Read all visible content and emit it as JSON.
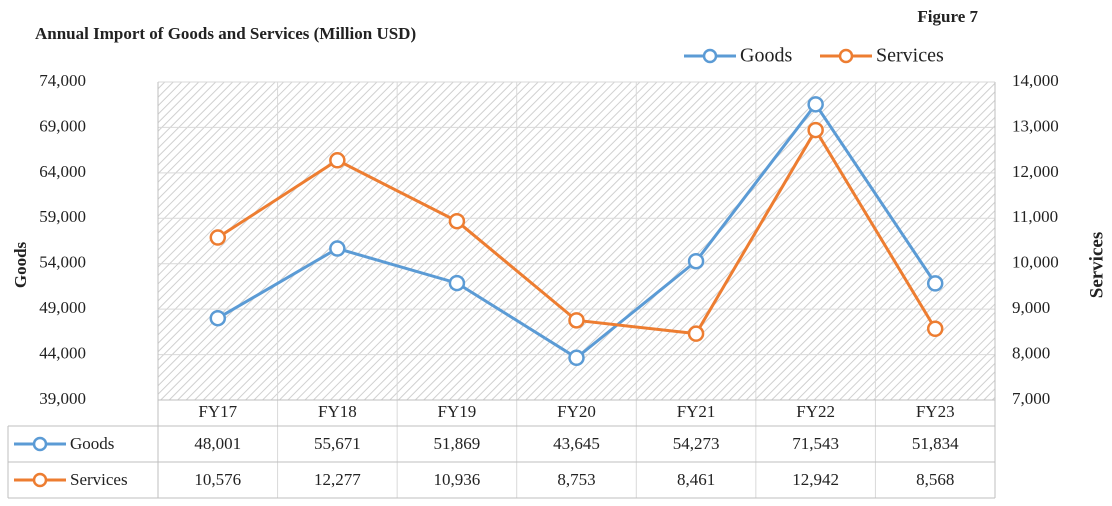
{
  "chart_data": {
    "type": "line",
    "title": "Annual Import of Goods and Services (Million USD)",
    "figure_label": "Figure 7",
    "y_label": "Goods",
    "y2_label": "Services",
    "categories": [
      "FY17",
      "FY18",
      "FY19",
      "FY20",
      "FY21",
      "FY22",
      "FY23"
    ],
    "series": [
      {
        "name": "Goods",
        "color": "#5b9bd5",
        "values": [
          48001,
          55671,
          51869,
          43645,
          54273,
          71543,
          51834
        ],
        "value_labels": [
          "48,001",
          "55,671",
          "51,869",
          "43,645",
          "54,273",
          "71,543",
          "51,834"
        ]
      },
      {
        "name": "Services",
        "color": "#ed7d31",
        "axis": "y2",
        "values": [
          10576,
          12277,
          10936,
          8753,
          8461,
          12942,
          8568
        ],
        "value_labels": [
          "10,576",
          "12,277",
          "10,936",
          "8,753",
          "8,461",
          "12,942",
          "8,568"
        ]
      }
    ],
    "ylim": [
      39000,
      74000
    ],
    "yticks": [
      {
        "value": 39000,
        "label": "39,000"
      },
      {
        "value": 44000,
        "label": "44,000"
      },
      {
        "value": 49000,
        "label": "49,000"
      },
      {
        "value": 54000,
        "label": "54,000"
      },
      {
        "value": 59000,
        "label": "59,000"
      },
      {
        "value": 64000,
        "label": "64,000"
      },
      {
        "value": 69000,
        "label": "69,000"
      },
      {
        "value": 74000,
        "label": "74,000"
      }
    ],
    "y2lim": [
      7000,
      14000
    ],
    "y2ticks": [
      {
        "value": 7000,
        "label": "7,000"
      },
      {
        "value": 8000,
        "label": "8,000"
      },
      {
        "value": 9000,
        "label": "9,000"
      },
      {
        "value": 10000,
        "label": "10,000"
      },
      {
        "value": 11000,
        "label": "11,000"
      },
      {
        "value": 12000,
        "label": "12,000"
      },
      {
        "value": 13000,
        "label": "13,000"
      },
      {
        "value": 14000,
        "label": "14,000"
      }
    ],
    "grid": true,
    "legend": "top-right"
  }
}
